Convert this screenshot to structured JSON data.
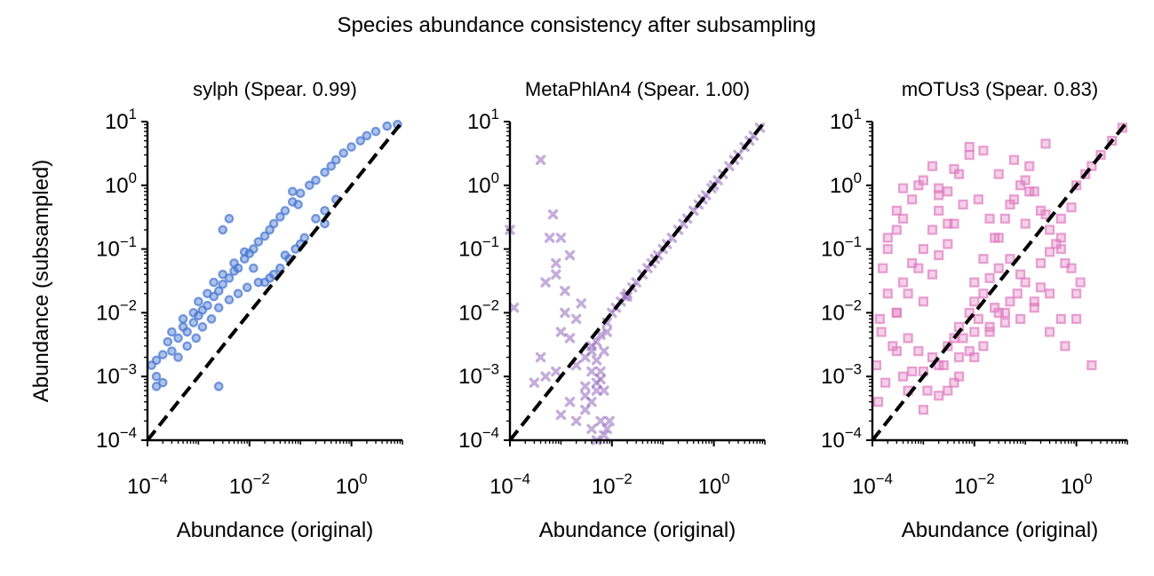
{
  "figure": {
    "title": "Species abundance consistency after subsampling"
  },
  "chart_data": [
    {
      "type": "scatter",
      "title": "sylph (Spear. 0.99)",
      "xlabel": "Abundance (original)",
      "ylabel": "Abundance (subsampled)",
      "xscale": "log",
      "yscale": "log",
      "xlim": [
        0.0001,
        10
      ],
      "ylim": [
        0.0001,
        10
      ],
      "xticks": [
        {
          "base": "10",
          "exp": "−4"
        },
        {
          "base": "10",
          "exp": "−2"
        },
        {
          "base": "10",
          "exp": "0"
        }
      ],
      "yticks": [
        {
          "base": "10",
          "exp": "−4"
        },
        {
          "base": "10",
          "exp": "−3"
        },
        {
          "base": "10",
          "exp": "−2"
        },
        {
          "base": "10",
          "exp": "−1"
        },
        {
          "base": "10",
          "exp": "0"
        },
        {
          "base": "10",
          "exp": "1"
        }
      ],
      "marker": "circle",
      "color": "#4a78d2",
      "identity_line": true,
      "grid": false,
      "series": [
        {
          "x": [
            0.00012,
            0.00015,
            0.0002,
            0.00015,
            0.00025,
            0.0003,
            0.0004,
            0.0005,
            0.0006,
            0.0008,
            0.001,
            0.0012,
            0.0015,
            0.002,
            0.0025,
            0.003,
            0.004,
            0.005,
            0.006,
            0.008,
            0.01,
            0.012,
            0.015,
            0.02,
            0.025,
            0.03,
            0.04,
            0.05,
            0.07,
            0.1,
            0.15,
            0.2,
            0.3,
            0.4,
            0.5,
            0.7,
            1.0,
            1.5,
            2.0,
            3.0,
            5.0,
            8.0,
            0.0003,
            0.0005,
            0.0008,
            0.001,
            0.0015,
            0.002,
            0.003,
            0.005,
            0.008,
            0.012,
            0.02,
            0.03,
            0.05,
            0.08,
            0.12,
            0.2,
            0.3,
            0.5,
            0.0004,
            0.0006,
            0.0009,
            0.0012,
            0.0018,
            0.0025,
            0.004,
            0.006,
            0.009,
            0.015,
            0.025,
            0.04,
            0.06,
            0.1,
            0.3,
            0.003,
            0.004,
            0.07,
            0.09,
            0.00015,
            0.0002,
            0.0025
          ],
          "y": [
            0.0015,
            0.001,
            0.0022,
            0.0018,
            0.0035,
            0.0025,
            0.004,
            0.006,
            0.005,
            0.007,
            0.009,
            0.011,
            0.013,
            0.018,
            0.022,
            0.028,
            0.035,
            0.045,
            0.05,
            0.07,
            0.085,
            0.1,
            0.13,
            0.16,
            0.2,
            0.25,
            0.32,
            0.4,
            0.55,
            0.75,
            1.0,
            1.2,
            1.6,
            2.0,
            2.5,
            3.2,
            4.0,
            5.0,
            6.0,
            7.0,
            8.5,
            9.0,
            0.005,
            0.008,
            0.01,
            0.015,
            0.02,
            0.03,
            0.04,
            0.06,
            0.09,
            0.05,
            0.03,
            0.04,
            0.08,
            0.1,
            0.15,
            0.3,
            0.4,
            0.6,
            0.002,
            0.003,
            0.004,
            0.006,
            0.008,
            0.012,
            0.016,
            0.02,
            0.025,
            0.03,
            0.035,
            0.05,
            0.07,
            0.12,
            0.25,
            0.2,
            0.3,
            0.8,
            0.5,
            0.0007,
            0.0008,
            0.0007
          ]
        }
      ]
    },
    {
      "type": "scatter",
      "title": "MetaPhlAn4 (Spear. 1.00)",
      "xlabel": "Abundance (original)",
      "ylabel": "",
      "xscale": "log",
      "yscale": "log",
      "xlim": [
        0.0001,
        10
      ],
      "ylim": [
        0.0001,
        10
      ],
      "xticks": [
        {
          "base": "10",
          "exp": "−4"
        },
        {
          "base": "10",
          "exp": "−2"
        },
        {
          "base": "10",
          "exp": "0"
        }
      ],
      "yticks": [
        {
          "base": "10",
          "exp": "−4"
        },
        {
          "base": "10",
          "exp": "−3"
        },
        {
          "base": "10",
          "exp": "−2"
        },
        {
          "base": "10",
          "exp": "−1"
        },
        {
          "base": "10",
          "exp": "0"
        },
        {
          "base": "10",
          "exp": "1"
        }
      ],
      "marker": "x",
      "color": "#9467bd",
      "identity_line": true,
      "grid": false,
      "series": [
        {
          "x": [
            0.0001,
            0.00012,
            0.0004,
            0.0005,
            0.0006,
            0.0007,
            0.0008,
            0.0008,
            0.001,
            0.0012,
            0.0015,
            0.0008,
            0.001,
            0.0012,
            0.0015,
            0.002,
            0.0025,
            0.0003,
            0.0004,
            0.0005,
            0.001,
            0.0015,
            0.002,
            0.003,
            0.004,
            0.005,
            0.006,
            0.007,
            0.008,
            0.009,
            0.002,
            0.003,
            0.004,
            0.005,
            0.006,
            0.007,
            0.008,
            0.003,
            0.004,
            0.005,
            0.006,
            0.007,
            0.004,
            0.005,
            0.006,
            0.003,
            0.004,
            0.005,
            0.01,
            0.015,
            0.02,
            0.03,
            0.05,
            0.07,
            0.1,
            0.15,
            0.2,
            0.3,
            0.5,
            0.7,
            1.0,
            1.5,
            2.0,
            3.0,
            5.0,
            8.0,
            0.012,
            0.018,
            0.025,
            0.04,
            0.06,
            0.08,
            0.12,
            0.25,
            0.4,
            0.6,
            0.9,
            1.2,
            2.5,
            4.0,
            6.0,
            0.008,
            0.02
          ],
          "y": [
            0.2,
            0.012,
            2.5,
            0.03,
            0.15,
            0.35,
            0.04,
            0.06,
            0.15,
            0.022,
            0.08,
            0.0012,
            0.005,
            0.01,
            0.004,
            0.008,
            0.014,
            0.0008,
            0.002,
            0.001,
            0.00025,
            0.0004,
            0.0002,
            0.0003,
            0.00015,
            0.0001,
            0.0002,
            0.00012,
            0.00015,
            0.0002,
            0.0015,
            0.002,
            0.003,
            0.0008,
            0.0012,
            0.0025,
            0.005,
            0.0005,
            0.0004,
            0.0006,
            0.0009,
            0.0006,
            0.0025,
            0.0035,
            0.0045,
            0.0007,
            0.0012,
            0.0018,
            0.01,
            0.015,
            0.02,
            0.03,
            0.05,
            0.07,
            0.1,
            0.15,
            0.2,
            0.3,
            0.5,
            0.7,
            1.0,
            1.5,
            2.0,
            3.0,
            5.0,
            8.0,
            0.012,
            0.018,
            0.025,
            0.04,
            0.06,
            0.08,
            0.12,
            0.25,
            0.4,
            0.6,
            0.9,
            1.2,
            2.5,
            4.0,
            6.0,
            0.007,
            0.018
          ]
        }
      ]
    },
    {
      "type": "scatter",
      "title": "mOTUs3 (Spear. 0.83)",
      "xlabel": "Abundance (original)",
      "ylabel": "",
      "xscale": "log",
      "yscale": "log",
      "xlim": [
        0.0001,
        10
      ],
      "ylim": [
        0.0001,
        10
      ],
      "xticks": [
        {
          "base": "10",
          "exp": "−4"
        },
        {
          "base": "10",
          "exp": "−2"
        },
        {
          "base": "10",
          "exp": "0"
        }
      ],
      "yticks": [
        {
          "base": "10",
          "exp": "−4"
        },
        {
          "base": "10",
          "exp": "−3"
        },
        {
          "base": "10",
          "exp": "−2"
        },
        {
          "base": "10",
          "exp": "−1"
        },
        {
          "base": "10",
          "exp": "0"
        },
        {
          "base": "10",
          "exp": "1"
        }
      ],
      "marker": "square",
      "color": "#e07cc0",
      "identity_line": true,
      "grid": false,
      "series": [
        {
          "x": [
            0.00012,
            0.00015,
            0.0002,
            0.00013,
            0.00018,
            0.00025,
            0.0003,
            0.0004,
            0.00016,
            0.0002,
            0.00014,
            0.0003,
            0.0004,
            0.0005,
            0.0006,
            0.0008,
            0.001,
            0.0012,
            0.0015,
            0.002,
            0.0025,
            0.003,
            0.004,
            0.005,
            0.006,
            0.008,
            0.01,
            0.012,
            0.015,
            0.02,
            0.025,
            0.03,
            0.04,
            0.05,
            0.07,
            0.1,
            0.15,
            0.2,
            0.3,
            0.5,
            0.0003,
            0.0005,
            0.0008,
            0.001,
            0.0015,
            0.002,
            0.003,
            0.005,
            0.008,
            0.012,
            0.02,
            0.03,
            0.05,
            0.08,
            0.12,
            0.2,
            0.3,
            0.5,
            0.8,
            1.2,
            0.0004,
            0.0006,
            0.001,
            0.0015,
            0.002,
            0.003,
            0.004,
            0.006,
            0.01,
            0.015,
            0.025,
            0.04,
            0.06,
            0.1,
            0.15,
            0.25,
            0.4,
            0.6,
            1.0,
            0.0002,
            0.0003,
            0.0004,
            0.0006,
            0.0008,
            0.001,
            0.0015,
            0.002,
            0.003,
            0.004,
            0.005,
            0.008,
            0.01,
            0.015,
            0.02,
            0.03,
            0.05,
            0.08,
            0.1,
            0.2,
            0.3,
            0.5,
            0.8,
            1.0,
            1.5,
            2.0,
            3.0,
            5.0,
            8.0,
            0.0003,
            0.0005,
            0.001,
            0.002,
            0.003,
            0.005,
            0.01,
            0.02,
            0.04,
            0.08,
            0.15,
            0.3,
            0.6,
            1.0,
            2.0,
            0.002,
            0.004,
            0.008,
            0.015,
            0.03,
            0.06,
            0.12,
            0.25,
            0.5
          ],
          "y": [
            0.0015,
            0.005,
            0.02,
            0.0004,
            0.0008,
            0.003,
            0.01,
            0.001,
            0.05,
            0.15,
            0.008,
            0.4,
            0.9,
            0.0006,
            0.0012,
            0.0025,
            0.0003,
            0.0006,
            0.002,
            0.0005,
            0.0015,
            0.003,
            0.0008,
            0.002,
            0.004,
            0.0025,
            0.005,
            0.008,
            0.003,
            0.006,
            0.012,
            0.01,
            0.007,
            0.015,
            0.02,
            0.03,
            0.012,
            0.025,
            0.005,
            0.008,
            0.01,
            0.02,
            0.05,
            0.1,
            0.2,
            0.4,
            0.8,
            1.5,
            3.0,
            0.6,
            0.3,
            0.15,
            0.5,
            1.0,
            2.0,
            0.4,
            0.2,
            0.1,
            0.05,
            0.03,
            0.03,
            0.06,
            0.015,
            0.04,
            0.08,
            0.12,
            0.25,
            0.5,
            0.03,
            0.07,
            0.15,
            0.3,
            0.6,
            1.2,
            0.8,
            0.35,
            0.12,
            0.06,
            0.02,
            0.1,
            0.2,
            0.3,
            0.6,
            1.0,
            1.2,
            2.0,
            0.7,
            0.25,
            0.004,
            0.006,
            0.01,
            0.015,
            0.02,
            0.035,
            0.05,
            0.07,
            0.04,
            0.25,
            0.06,
            0.09,
            0.15,
            0.45,
            1.0,
            1.5,
            2.0,
            3.0,
            5.0,
            8.0,
            0.0025,
            0.004,
            0.0012,
            0.0015,
            0.0006,
            0.001,
            0.002,
            0.005,
            0.01,
            0.008,
            0.015,
            0.02,
            0.003,
            0.008,
            0.0015,
            0.9,
            1.8,
            4.0,
            3.5,
            1.5,
            2.5,
            0.8,
            4.5,
            0.3
          ]
        }
      ]
    }
  ]
}
